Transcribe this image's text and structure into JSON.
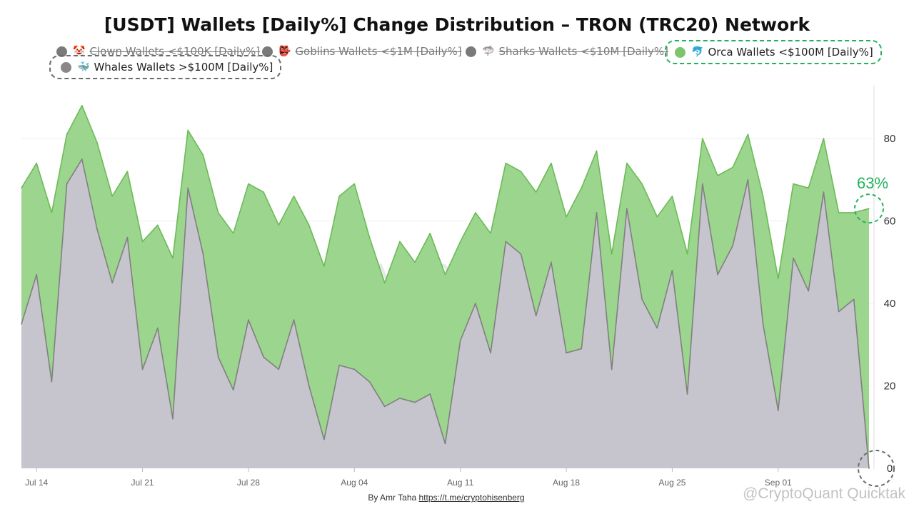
{
  "chart_data": {
    "type": "area",
    "title": "[USDT] Wallets [Daily%] Change Distribution – TRON (TRC20) Network",
    "legend": [
      {
        "name": "Clown Wallets <$100K [Daily%]",
        "emoji": "🤡",
        "state": "hidden",
        "color": "#7a7a7a"
      },
      {
        "name": "Goblins Wallets <$1M [Daily%]",
        "emoji": "👺",
        "state": "hidden",
        "color": "#7a7a7a"
      },
      {
        "name": "Sharks Wallets <$10M [Daily%]",
        "emoji": "🦈",
        "state": "hidden",
        "color": "#7a7a7a"
      },
      {
        "name": "Orca Wallets <$100M [Daily%]",
        "emoji": "🐬",
        "state": "shown",
        "color": "#7dc46c"
      },
      {
        "name": "Whales Wallets >$100M [Daily%]",
        "emoji": "🐳",
        "state": "shown",
        "color": "#888888"
      }
    ],
    "x_ticks": [
      "Jul 14",
      "Jul 21",
      "Jul 28",
      "Aug 04",
      "Aug 11",
      "Aug 18",
      "Aug 25",
      "Sep 01"
    ],
    "y_ticks": [
      "0",
      "20",
      "40",
      "60",
      "80"
    ],
    "ylim": [
      0,
      93
    ],
    "series": [
      {
        "name": "Orca Wallets <$100M [Daily%]",
        "color": "#7dc46c",
        "values": [
          68,
          74,
          62,
          81,
          88,
          79,
          66,
          72,
          55,
          59,
          51,
          82,
          76,
          62,
          57,
          69,
          67,
          59,
          66,
          59,
          49,
          66,
          69,
          56,
          45,
          55,
          50,
          57,
          47,
          55,
          62,
          57,
          74,
          72,
          67,
          74,
          61,
          68,
          77,
          52,
          74,
          69,
          61,
          66,
          52,
          80,
          71,
          73,
          81,
          66,
          46,
          69,
          68,
          80,
          62,
          62,
          63
        ]
      },
      {
        "name": "Whales Wallets >$100M [Daily%]",
        "color": "#888888",
        "values": [
          35,
          47,
          21,
          69,
          75,
          58,
          45,
          56,
          24,
          34,
          12,
          68,
          52,
          27,
          19,
          36,
          27,
          24,
          36,
          20,
          7,
          25,
          24,
          21,
          15,
          17,
          16,
          18,
          6,
          31,
          40,
          28,
          55,
          52,
          37,
          50,
          28,
          29,
          62,
          24,
          63,
          41,
          34,
          48,
          18,
          69,
          47,
          54,
          70,
          35,
          14,
          51,
          43,
          67,
          38,
          41,
          0
        ]
      }
    ],
    "annotations": [
      {
        "text": "63%",
        "color": "#22b35a"
      }
    ],
    "watermark": "CryptoQuant",
    "watermark_footer": "@CryptoQuant Quicktak",
    "grid": "horizontal"
  },
  "credit": {
    "prefix": "By Amr Taha",
    "link": "https://t.me/cryptohisenberg"
  },
  "colors": {
    "orca_fill": "#9cd58d",
    "orca_line": "#6bbb57",
    "whale_fill": "#c6c4cc",
    "whale_line": "#808080",
    "highlight_green": "#22b35a",
    "highlight_gray": "#6b6b6b"
  }
}
